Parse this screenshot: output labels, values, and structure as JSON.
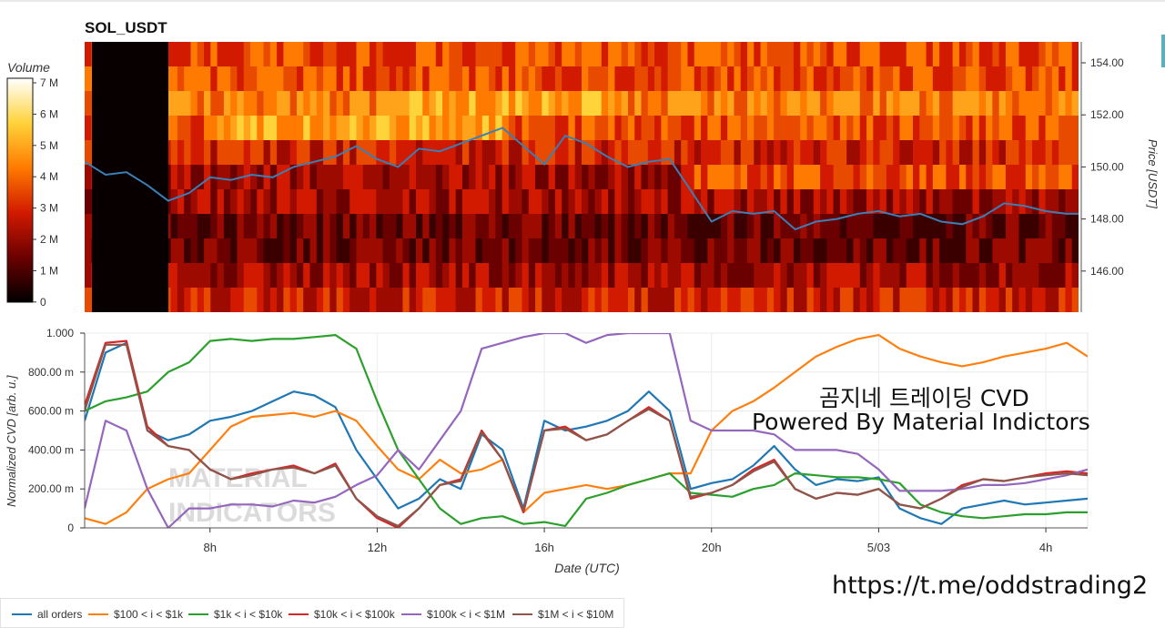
{
  "symbol": "SOL_USDT",
  "colorbar": {
    "title": "Volume",
    "ticks": [
      "7 M",
      "6 M",
      "5 M",
      "4 M",
      "3 M",
      "2 M",
      "1 M",
      "0"
    ]
  },
  "price_axis": {
    "label": "Price [USDT]",
    "ticks": [
      "154.00",
      "152.00",
      "150.00",
      "148.00",
      "146.00"
    ]
  },
  "cvd_axis": {
    "label": "Normalized CVD [arb. u.]",
    "ticks": [
      "1.000",
      "800.00 m",
      "600.00 m",
      "400.00 m",
      "200.00 m",
      "0"
    ]
  },
  "x_axis": {
    "label": "Date (UTC)",
    "ticks": [
      "8h",
      "12h",
      "16h",
      "20h",
      "5/03",
      "4h"
    ]
  },
  "overlay": {
    "line1": "곰지네 트레이딩 CVD",
    "line2": "Powered By Material Indictors",
    "link": "https://t.me/oddstrading2"
  },
  "watermark": {
    "line1": "MATERIAL",
    "line2": "INDICATORS"
  },
  "colors": {
    "all_orders": "#1f77b4",
    "b100_1k": "#ff7f0e",
    "b1k_10k": "#2ca02c",
    "b10k_100k": "#d62728",
    "b100k_1M": "#9467bd",
    "b1M_10M": "#8c564b",
    "price_line": "#3b7fb5"
  },
  "legend": [
    {
      "label": "all orders",
      "color": "#1f77b4"
    },
    {
      "label": "$100 < i < $1k",
      "color": "#ff7f0e"
    },
    {
      "label": "$1k < i < $10k",
      "color": "#2ca02c"
    },
    {
      "label": "$10k < i < $100k",
      "color": "#d62728"
    },
    {
      "label": "$100k < i < $1M",
      "color": "#9467bd"
    },
    {
      "label": "$1M < i < $10M",
      "color": "#8c564b"
    }
  ],
  "chart_data": [
    {
      "type": "heatmap",
      "title": "SOL_USDT",
      "description_of_axes": "x = time (UTC), y = price level (USDT), color = resting volume",
      "xlabel": "",
      "ylabel": "Price [USDT]",
      "ylim": [
        144.5,
        154.8
      ],
      "colorbar_label": "Volume",
      "colorbar_range": [
        0,
        7300000
      ],
      "price_levels": [
        154.5,
        153.5,
        152.5,
        151.5,
        150.5,
        149.5,
        148.5,
        147.5,
        146.5,
        145.5,
        144.8
      ],
      "price_line": {
        "x_hours": [
          5.0,
          5.5,
          6.0,
          6.5,
          7.0,
          7.5,
          8.0,
          8.5,
          9.0,
          9.5,
          10.0,
          10.5,
          11.0,
          11.5,
          12.0,
          12.5,
          13.0,
          13.5,
          14.0,
          14.5,
          15.0,
          15.5,
          16.0,
          16.5,
          17.0,
          17.5,
          18.0,
          18.5,
          19.0,
          19.5,
          20.0,
          20.5,
          21.0,
          21.5,
          22.0,
          22.5,
          23.0,
          23.5,
          24.0,
          24.5,
          25.0,
          25.5,
          26.0,
          26.5,
          27.0,
          27.5,
          28.0,
          28.5,
          29.0
        ],
        "price": [
          150.2,
          149.7,
          149.8,
          149.3,
          148.7,
          149.0,
          149.6,
          149.5,
          149.7,
          149.6,
          150.0,
          150.2,
          150.4,
          150.8,
          150.3,
          150.0,
          150.7,
          150.6,
          150.9,
          151.2,
          151.5,
          150.8,
          150.1,
          151.2,
          150.9,
          150.4,
          150.0,
          150.2,
          150.3,
          149.1,
          147.9,
          148.3,
          148.2,
          148.3,
          147.6,
          147.9,
          148.0,
          148.2,
          148.3,
          148.1,
          148.2,
          147.9,
          147.8,
          148.1,
          148.6,
          148.5,
          148.3,
          148.2,
          148.2
        ]
      }
    },
    {
      "type": "line",
      "title": "",
      "xlabel": "Date (UTC)",
      "ylabel": "Normalized CVD [arb. u.]",
      "ylim": [
        0,
        1.0
      ],
      "x_hours": [
        5.0,
        5.5,
        6.0,
        6.5,
        7.0,
        7.5,
        8.0,
        8.5,
        9.0,
        9.5,
        10.0,
        10.5,
        11.0,
        11.5,
        12.0,
        12.5,
        13.0,
        13.5,
        14.0,
        14.5,
        15.0,
        15.5,
        16.0,
        16.5,
        17.0,
        17.5,
        18.0,
        18.5,
        19.0,
        19.5,
        20.0,
        20.5,
        21.0,
        21.5,
        22.0,
        22.5,
        23.0,
        23.5,
        24.0,
        24.5,
        25.0,
        25.5,
        26.0,
        26.5,
        27.0,
        27.5,
        28.0,
        28.5,
        29.0
      ],
      "series": [
        {
          "name": "all orders",
          "values": [
            0.55,
            0.9,
            0.95,
            0.5,
            0.45,
            0.48,
            0.55,
            0.57,
            0.6,
            0.65,
            0.7,
            0.68,
            0.62,
            0.4,
            0.25,
            0.1,
            0.15,
            0.25,
            0.2,
            0.48,
            0.4,
            0.1,
            0.55,
            0.5,
            0.52,
            0.55,
            0.6,
            0.7,
            0.6,
            0.2,
            0.23,
            0.25,
            0.32,
            0.42,
            0.3,
            0.22,
            0.25,
            0.24,
            0.26,
            0.1,
            0.05,
            0.02,
            0.1,
            0.12,
            0.14,
            0.12,
            0.13,
            0.14,
            0.15
          ]
        },
        {
          "name": "$100 < i < $1k",
          "values": [
            0.05,
            0.02,
            0.08,
            0.2,
            0.25,
            0.28,
            0.4,
            0.52,
            0.57,
            0.58,
            0.59,
            0.57,
            0.6,
            0.55,
            0.42,
            0.3,
            0.25,
            0.35,
            0.28,
            0.3,
            0.35,
            0.08,
            0.18,
            0.2,
            0.22,
            0.2,
            0.22,
            0.25,
            0.28,
            0.28,
            0.5,
            0.6,
            0.65,
            0.72,
            0.8,
            0.88,
            0.93,
            0.97,
            0.99,
            0.92,
            0.88,
            0.85,
            0.83,
            0.85,
            0.88,
            0.9,
            0.92,
            0.95,
            0.88
          ]
        },
        {
          "name": "$1k < i < $10k",
          "values": [
            0.6,
            0.65,
            0.67,
            0.7,
            0.8,
            0.85,
            0.96,
            0.97,
            0.96,
            0.97,
            0.97,
            0.98,
            0.99,
            0.92,
            0.65,
            0.4,
            0.25,
            0.1,
            0.02,
            0.05,
            0.06,
            0.02,
            0.03,
            0.01,
            0.15,
            0.18,
            0.22,
            0.25,
            0.28,
            0.18,
            0.17,
            0.16,
            0.2,
            0.22,
            0.28,
            0.27,
            0.26,
            0.26,
            0.25,
            0.23,
            0.12,
            0.08,
            0.06,
            0.05,
            0.06,
            0.07,
            0.07,
            0.08,
            0.08
          ]
        },
        {
          "name": "$10k < i < $100k",
          "values": [
            0.63,
            0.95,
            0.96,
            0.52,
            0.42,
            0.4,
            0.3,
            0.25,
            0.28,
            0.3,
            0.32,
            0.28,
            0.33,
            0.15,
            0.05,
            0.0,
            0.1,
            0.22,
            0.25,
            0.5,
            0.35,
            0.08,
            0.5,
            0.52,
            0.45,
            0.48,
            0.55,
            0.62,
            0.55,
            0.15,
            0.18,
            0.22,
            0.3,
            0.35,
            0.2,
            0.15,
            0.18,
            0.17,
            0.2,
            0.12,
            0.1,
            0.15,
            0.22,
            0.25,
            0.24,
            0.26,
            0.28,
            0.29,
            0.28
          ]
        },
        {
          "name": "$100k < i < $1M",
          "values": [
            0.1,
            0.55,
            0.5,
            0.2,
            0.0,
            0.1,
            0.1,
            0.12,
            0.12,
            0.11,
            0.14,
            0.13,
            0.16,
            0.22,
            0.27,
            0.4,
            0.3,
            0.45,
            0.6,
            0.92,
            0.95,
            0.98,
            1.0,
            1.0,
            0.95,
            0.99,
            1.0,
            1.0,
            1.0,
            0.55,
            0.5,
            0.5,
            0.5,
            0.48,
            0.4,
            0.4,
            0.4,
            0.38,
            0.3,
            0.19,
            0.19,
            0.19,
            0.2,
            0.22,
            0.22,
            0.23,
            0.25,
            0.27,
            0.3
          ]
        },
        {
          "name": "$1M < i < $10M",
          "values": [
            0.6,
            0.94,
            0.94,
            0.5,
            0.42,
            0.4,
            0.3,
            0.25,
            0.27,
            0.3,
            0.31,
            0.28,
            0.32,
            0.15,
            0.06,
            0.01,
            0.1,
            0.22,
            0.24,
            0.49,
            0.35,
            0.09,
            0.5,
            0.51,
            0.45,
            0.48,
            0.55,
            0.61,
            0.55,
            0.16,
            0.18,
            0.22,
            0.29,
            0.34,
            0.2,
            0.15,
            0.18,
            0.17,
            0.2,
            0.12,
            0.1,
            0.15,
            0.21,
            0.25,
            0.24,
            0.26,
            0.27,
            0.28,
            0.27
          ]
        }
      ]
    }
  ]
}
